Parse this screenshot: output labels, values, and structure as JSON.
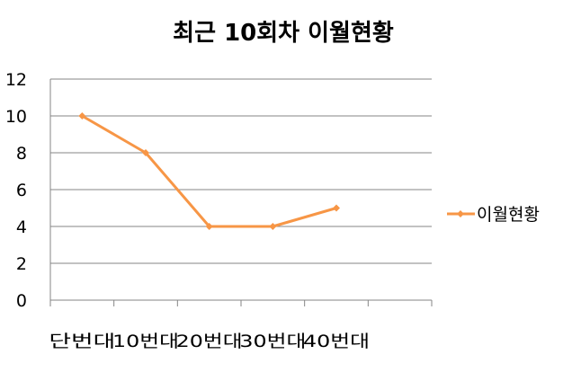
{
  "chart_data": {
    "type": "line",
    "title": "최근 10회차 이월현황",
    "categories": [
      "단번대",
      "10번대",
      "20번대",
      "30번대",
      "40번대",
      ""
    ],
    "series": [
      {
        "name": "이월현황",
        "values": [
          10,
          8,
          4,
          4,
          5,
          null
        ],
        "color": "#F79646"
      }
    ],
    "ylim": [
      0,
      12
    ],
    "yticks": [
      0,
      2,
      4,
      6,
      8,
      10,
      12
    ],
    "grid": true,
    "legend": "right",
    "xlabel": "",
    "ylabel": ""
  }
}
